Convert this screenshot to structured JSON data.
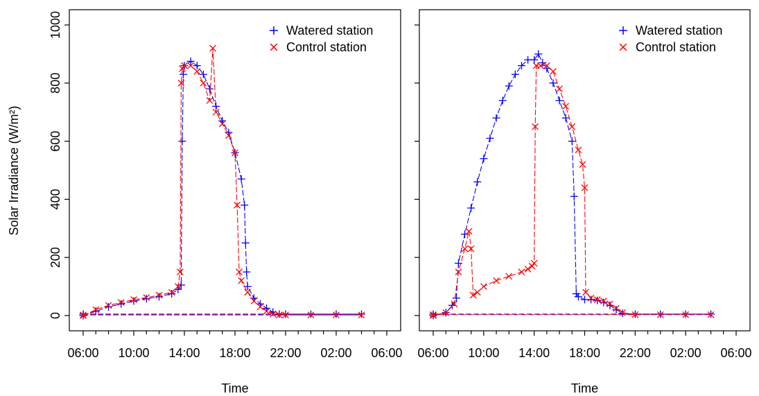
{
  "y_axis_label": "Solar Irradiance (W/m²)",
  "x_axis_label": "Time",
  "chart_data": [
    {
      "type": "line",
      "panel": "left",
      "xlabel": "Time",
      "ylabel": "Solar Irradiance (W/m²)",
      "xlim": [
        "06:00",
        "06:00 (+1 day)"
      ],
      "ylim": [
        0,
        1000
      ],
      "x_ticks": [
        "06:00",
        "10:00",
        "14:00",
        "18:00",
        "22:00",
        "02:00",
        "06:00"
      ],
      "y_ticks": [
        0,
        200,
        400,
        600,
        800,
        1000
      ],
      "legend_position": "top-right",
      "grid": false,
      "series": [
        {
          "name": "Watered station",
          "color": "#0000FF",
          "marker": "plus",
          "x": [
            "06:00",
            "07:00",
            "08:00",
            "09:00",
            "10:00",
            "11:00",
            "12:00",
            "13:00",
            "13:30",
            "13:45",
            "13:50",
            "13:55",
            "14:00",
            "14:30",
            "15:00",
            "15:30",
            "16:00",
            "16:30",
            "17:00",
            "17:30",
            "18:00",
            "18:30",
            "18:45",
            "18:50",
            "18:55",
            "19:00",
            "19:30",
            "20:00",
            "20:30",
            "21:00",
            "21:30",
            "22:00",
            "24:00",
            "02:00",
            "04:00",
            "06:00"
          ],
          "values": [
            0,
            15,
            30,
            40,
            50,
            58,
            65,
            75,
            90,
            105,
            600,
            830,
            860,
            875,
            860,
            830,
            780,
            720,
            670,
            630,
            560,
            470,
            380,
            250,
            150,
            100,
            60,
            40,
            25,
            12,
            5,
            5,
            5,
            5,
            5,
            5
          ]
        },
        {
          "name": "Control station",
          "color": "#FF0000",
          "marker": "x",
          "x": [
            "06:00",
            "07:00",
            "08:00",
            "09:00",
            "10:00",
            "11:00",
            "12:00",
            "13:00",
            "13:30",
            "13:40",
            "13:45",
            "13:50",
            "14:00",
            "14:30",
            "15:00",
            "15:30",
            "16:00",
            "16:15",
            "16:30",
            "17:00",
            "17:30",
            "18:00",
            "18:10",
            "18:20",
            "18:30",
            "19:00",
            "19:30",
            "20:00",
            "20:30",
            "21:00",
            "21:30",
            "22:00",
            "24:00",
            "02:00",
            "04:00",
            "06:00"
          ],
          "values": [
            0,
            20,
            35,
            45,
            55,
            62,
            70,
            80,
            100,
            150,
            800,
            850,
            860,
            860,
            840,
            800,
            740,
            920,
            700,
            660,
            620,
            560,
            380,
            150,
            120,
            80,
            50,
            30,
            15,
            5,
            2,
            2,
            2,
            2,
            2,
            2
          ]
        }
      ]
    },
    {
      "type": "line",
      "panel": "right",
      "xlabel": "Time",
      "xlim": [
        "06:00",
        "06:00 (+1 day)"
      ],
      "ylim": [
        0,
        1000
      ],
      "x_ticks": [
        "06:00",
        "10:00",
        "14:00",
        "18:00",
        "22:00",
        "02:00",
        "06:00"
      ],
      "legend_position": "top-right",
      "grid": false,
      "series": [
        {
          "name": "Watered station",
          "color": "#0000FF",
          "marker": "plus",
          "x": [
            "06:00",
            "07:00",
            "07:30",
            "07:50",
            "08:00",
            "08:30",
            "09:00",
            "09:30",
            "10:00",
            "10:30",
            "11:00",
            "11:30",
            "12:00",
            "12:30",
            "13:00",
            "13:30",
            "14:00",
            "14:20",
            "14:40",
            "15:00",
            "15:30",
            "16:00",
            "16:30",
            "17:00",
            "17:10",
            "17:20",
            "17:30",
            "18:00",
            "18:30",
            "19:00",
            "19:30",
            "20:00",
            "20:30",
            "21:00",
            "22:00",
            "24:00",
            "02:00",
            "04:00",
            "06:00"
          ],
          "values": [
            0,
            10,
            35,
            60,
            180,
            280,
            370,
            460,
            540,
            610,
            680,
            740,
            790,
            830,
            860,
            880,
            880,
            900,
            870,
            850,
            800,
            740,
            680,
            600,
            410,
            75,
            65,
            55,
            55,
            52,
            45,
            35,
            20,
            8,
            5,
            5,
            5,
            5,
            5
          ]
        },
        {
          "name": "Control station",
          "color": "#FF0000",
          "marker": "x",
          "x": [
            "06:00",
            "07:00",
            "07:40",
            "08:00",
            "08:30",
            "08:50",
            "09:00",
            "09:10",
            "09:30",
            "10:00",
            "11:00",
            "12:00",
            "13:00",
            "13:30",
            "13:50",
            "14:00",
            "14:05",
            "14:10",
            "14:30",
            "15:00",
            "15:30",
            "16:00",
            "16:30",
            "17:00",
            "17:30",
            "17:50",
            "18:00",
            "18:05",
            "18:30",
            "19:00",
            "19:30",
            "20:00",
            "20:30",
            "21:00",
            "22:00",
            "24:00",
            "02:00",
            "04:00",
            "06:00"
          ],
          "values": [
            0,
            10,
            40,
            150,
            230,
            290,
            230,
            70,
            80,
            100,
            120,
            135,
            150,
            160,
            170,
            180,
            650,
            860,
            860,
            860,
            840,
            780,
            720,
            650,
            570,
            520,
            440,
            80,
            60,
            55,
            50,
            40,
            25,
            10,
            3,
            3,
            3,
            3,
            3
          ]
        }
      ]
    }
  ]
}
